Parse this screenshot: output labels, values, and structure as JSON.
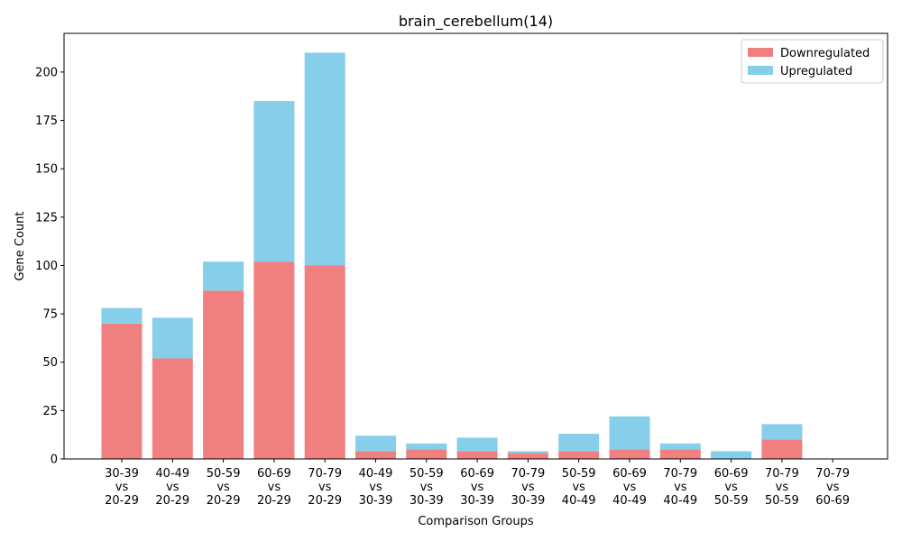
{
  "chart_data": {
    "type": "bar",
    "stacked": true,
    "title": "brain_cerebellum(14)",
    "xlabel": "Comparison Groups",
    "ylabel": "Gene Count",
    "ylim": [
      0,
      220
    ],
    "yticks": [
      0,
      25,
      50,
      75,
      100,
      125,
      150,
      175,
      200
    ],
    "grid": false,
    "legend_position": "top-right",
    "categories": [
      "30-39\nvs\n20-29",
      "40-49\nvs\n20-29",
      "50-59\nvs\n20-29",
      "60-69\nvs\n20-29",
      "70-79\nvs\n20-29",
      "40-49\nvs\n30-39",
      "50-59\nvs\n30-39",
      "60-69\nvs\n30-39",
      "70-79\nvs\n30-39",
      "50-59\nvs\n40-49",
      "60-69\nvs\n40-49",
      "70-79\nvs\n40-49",
      "60-69\nvs\n50-59",
      "70-79\nvs\n50-59",
      "70-79\nvs\n60-69"
    ],
    "series": [
      {
        "name": "Downregulated",
        "color": "#f08080",
        "values": [
          70,
          52,
          87,
          102,
          100,
          4,
          5,
          4,
          3,
          4,
          5,
          5,
          0,
          10,
          0
        ]
      },
      {
        "name": "Upregulated",
        "color": "#87ceeb",
        "values": [
          8,
          21,
          15,
          83,
          110,
          8,
          3,
          7,
          1,
          9,
          17,
          3,
          4,
          8,
          0
        ]
      }
    ]
  }
}
